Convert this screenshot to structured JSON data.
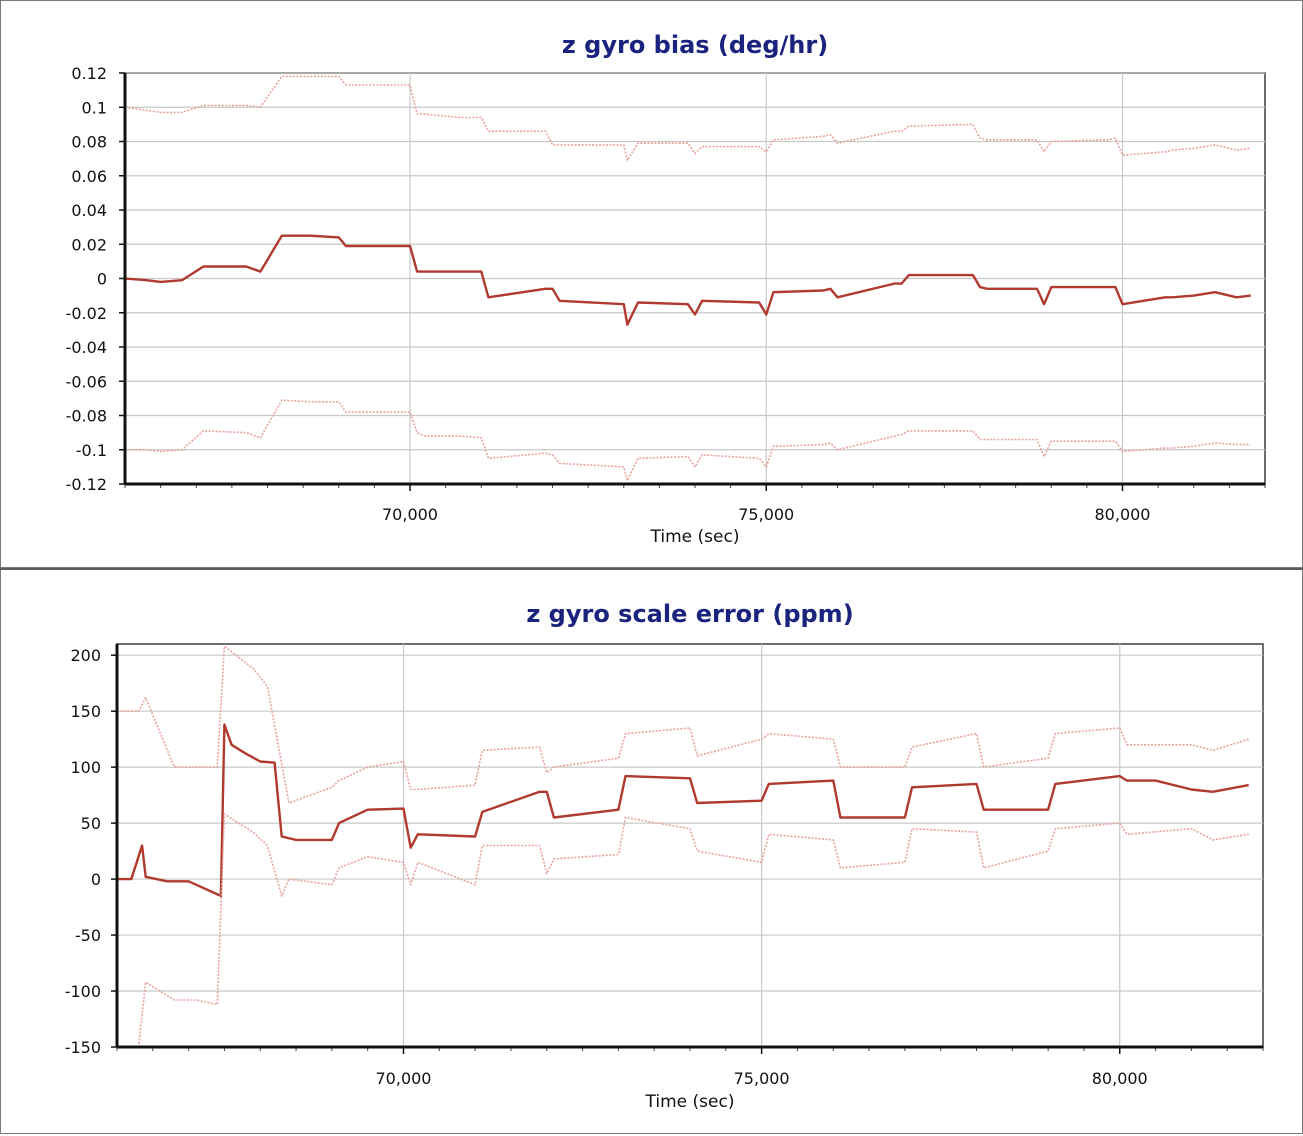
{
  "colors": {
    "main_series": "#b03a2e",
    "bound_series": "#e8a39c",
    "grid": "#c8c8c8",
    "title": "#1a237e"
  },
  "chart_data": [
    {
      "type": "line",
      "title": "z gyro bias (deg/hr)",
      "xlabel": "Time (sec)",
      "ylabel": "",
      "xlim": [
        66000,
        82000
      ],
      "ylim": [
        -0.12,
        0.12
      ],
      "x_ticks": [
        70000,
        75000,
        80000
      ],
      "x_tick_labels": [
        "70,000",
        "75,000",
        "80,000"
      ],
      "y_ticks": [
        0.12,
        0.1,
        0.08,
        0.06,
        0.04,
        0.02,
        0,
        -0.02,
        -0.04,
        -0.06,
        -0.08,
        -0.1,
        -0.12
      ],
      "y_tick_labels": [
        "0.12",
        "0.1",
        "0.08",
        "0.06",
        "0.04",
        "0.02",
        "0",
        "-0.02",
        "-0.04",
        "-0.06",
        "-0.08",
        "-0.1",
        "-0.12"
      ],
      "grid": true,
      "series": [
        {
          "role": "upper",
          "style": "dotted",
          "x": [
            66000,
            66500,
            66800,
            67100,
            67700,
            67900,
            68200,
            68600,
            69000,
            69100,
            69500,
            70000,
            70100,
            70200,
            70700,
            71000,
            71100,
            71900,
            72000,
            72100,
            73000,
            73050,
            73200,
            73900,
            74000,
            74100,
            74900,
            75000,
            75100,
            75800,
            75900,
            76000,
            76800,
            76900,
            77000,
            77900,
            78000,
            78100,
            78800,
            78900,
            79000,
            79800,
            79900,
            80000,
            80600,
            80700,
            81000,
            81300,
            81600,
            81800
          ],
          "y": [
            0.1,
            0.097,
            0.097,
            0.101,
            0.101,
            0.1,
            0.118,
            0.118,
            0.118,
            0.113,
            0.113,
            0.113,
            0.096,
            0.096,
            0.094,
            0.094,
            0.086,
            0.086,
            0.078,
            0.078,
            0.078,
            0.069,
            0.079,
            0.079,
            0.073,
            0.077,
            0.077,
            0.074,
            0.081,
            0.083,
            0.084,
            0.079,
            0.086,
            0.086,
            0.089,
            0.09,
            0.082,
            0.081,
            0.081,
            0.074,
            0.08,
            0.081,
            0.082,
            0.072,
            0.074,
            0.075,
            0.076,
            0.078,
            0.075,
            0.076
          ]
        },
        {
          "role": "estimate",
          "style": "solid",
          "x": [
            66000,
            66300,
            66500,
            66800,
            67100,
            67700,
            67900,
            68200,
            68600,
            69000,
            69100,
            69500,
            70000,
            70100,
            70200,
            70700,
            71000,
            71100,
            71900,
            72000,
            72100,
            73000,
            73050,
            73200,
            73900,
            74000,
            74100,
            74900,
            75000,
            75100,
            75800,
            75900,
            76000,
            76800,
            76900,
            77000,
            77900,
            78000,
            78100,
            78800,
            78900,
            79000,
            79800,
            79900,
            80000,
            80600,
            80700,
            81000,
            81300,
            81600,
            81800
          ],
          "y": [
            0.0,
            -0.001,
            -0.002,
            -0.001,
            0.007,
            0.007,
            0.004,
            0.025,
            0.025,
            0.024,
            0.019,
            0.019,
            0.019,
            0.004,
            0.004,
            0.004,
            0.004,
            -0.011,
            -0.006,
            -0.006,
            -0.013,
            -0.015,
            -0.027,
            -0.014,
            -0.015,
            -0.021,
            -0.013,
            -0.014,
            -0.021,
            -0.008,
            -0.007,
            -0.006,
            -0.011,
            -0.003,
            -0.003,
            0.002,
            0.002,
            -0.005,
            -0.006,
            -0.006,
            -0.015,
            -0.005,
            -0.005,
            -0.005,
            -0.015,
            -0.011,
            -0.011,
            -0.01,
            -0.008,
            -0.011,
            -0.01
          ]
        },
        {
          "role": "lower",
          "style": "dotted",
          "x": [
            66000,
            66300,
            66500,
            66800,
            67100,
            67700,
            67900,
            68200,
            68600,
            69000,
            69100,
            69500,
            70000,
            70100,
            70200,
            70700,
            71000,
            71100,
            71900,
            72000,
            72100,
            73000,
            73050,
            73200,
            73900,
            74000,
            74100,
            74900,
            75000,
            75100,
            75800,
            75900,
            76000,
            76800,
            76900,
            77000,
            77900,
            78000,
            78100,
            78800,
            78900,
            79000,
            79800,
            79900,
            80000,
            80600,
            80700,
            81000,
            81300,
            81600,
            81800
          ],
          "y": [
            -0.1,
            -0.1,
            -0.101,
            -0.1,
            -0.089,
            -0.09,
            -0.093,
            -0.071,
            -0.072,
            -0.072,
            -0.078,
            -0.078,
            -0.078,
            -0.09,
            -0.092,
            -0.092,
            -0.093,
            -0.105,
            -0.102,
            -0.103,
            -0.108,
            -0.11,
            -0.118,
            -0.105,
            -0.104,
            -0.11,
            -0.103,
            -0.105,
            -0.11,
            -0.098,
            -0.097,
            -0.096,
            -0.1,
            -0.092,
            -0.091,
            -0.089,
            -0.089,
            -0.094,
            -0.094,
            -0.094,
            -0.104,
            -0.095,
            -0.095,
            -0.095,
            -0.101,
            -0.099,
            -0.099,
            -0.098,
            -0.096,
            -0.097,
            -0.097
          ]
        }
      ]
    },
    {
      "type": "line",
      "title": "z gyro scale error (ppm)",
      "xlabel": "Time (sec)",
      "ylabel": "",
      "xlim": [
        66000,
        82000
      ],
      "ylim": [
        -150,
        210
      ],
      "x_ticks": [
        70000,
        75000,
        80000
      ],
      "x_tick_labels": [
        "70,000",
        "75,000",
        "80,000"
      ],
      "y_ticks": [
        200,
        150,
        100,
        50,
        0,
        -50,
        -100,
        -150
      ],
      "y_tick_labels": [
        "200",
        "150",
        "100",
        "50",
        "0",
        "-50",
        "-100",
        "-150"
      ],
      "grid": true,
      "series": [
        {
          "role": "upper",
          "style": "dotted",
          "x": [
            66000,
            66300,
            66400,
            66800,
            67100,
            67400,
            67500,
            67900,
            68100,
            68400,
            69000,
            69100,
            69500,
            70000,
            70100,
            70200,
            71000,
            71100,
            71900,
            72000,
            72100,
            73000,
            73100,
            74000,
            74100,
            75000,
            75100,
            76000,
            76100,
            77000,
            77100,
            78000,
            78100,
            79000,
            79100,
            80000,
            80100,
            81000,
            81300,
            81800
          ],
          "y": [
            150,
            150,
            162,
            100,
            100,
            100,
            208,
            188,
            172,
            68,
            82,
            88,
            100,
            105,
            80,
            80,
            84,
            115,
            118,
            95,
            100,
            108,
            130,
            135,
            110,
            125,
            130,
            125,
            100,
            100,
            118,
            130,
            100,
            108,
            130,
            135,
            120,
            120,
            115,
            125
          ]
        },
        {
          "role": "estimate",
          "style": "solid",
          "x": [
            66000,
            66200,
            66350,
            66400,
            66700,
            67000,
            67450,
            67500,
            67600,
            67800,
            68000,
            68200,
            68300,
            68500,
            69000,
            69100,
            69500,
            70000,
            70100,
            70200,
            71000,
            71100,
            71900,
            72000,
            72100,
            73000,
            73100,
            74000,
            74100,
            75000,
            75100,
            76000,
            76100,
            77000,
            77100,
            78000,
            78100,
            79000,
            79100,
            80000,
            80100,
            80500,
            81000,
            81300,
            81800
          ],
          "y": [
            0,
            0,
            30,
            2,
            -2,
            -2,
            -15,
            138,
            120,
            112,
            105,
            104,
            38,
            35,
            35,
            50,
            62,
            63,
            28,
            40,
            38,
            60,
            78,
            78,
            55,
            62,
            92,
            90,
            68,
            70,
            85,
            88,
            55,
            55,
            82,
            85,
            62,
            62,
            85,
            92,
            88,
            88,
            80,
            78,
            84
          ]
        },
        {
          "role": "lower",
          "style": "dotted",
          "x": [
            66000,
            66300,
            66400,
            66800,
            67100,
            67400,
            67500,
            67900,
            68100,
            68300,
            68400,
            69000,
            69100,
            69500,
            70000,
            70100,
            70200,
            71000,
            71100,
            71900,
            72000,
            72100,
            73000,
            73100,
            74000,
            74100,
            75000,
            75100,
            76000,
            76100,
            77000,
            77100,
            78000,
            78100,
            79000,
            79100,
            80000,
            80100,
            81000,
            81300,
            81800
          ],
          "y": [
            -150,
            -150,
            -92,
            -108,
            -108,
            -112,
            58,
            42,
            30,
            -15,
            0,
            -5,
            10,
            20,
            15,
            -5,
            15,
            -5,
            30,
            30,
            5,
            18,
            22,
            55,
            45,
            25,
            15,
            40,
            35,
            10,
            15,
            45,
            42,
            10,
            25,
            45,
            50,
            40,
            45,
            35,
            40
          ]
        }
      ]
    }
  ]
}
